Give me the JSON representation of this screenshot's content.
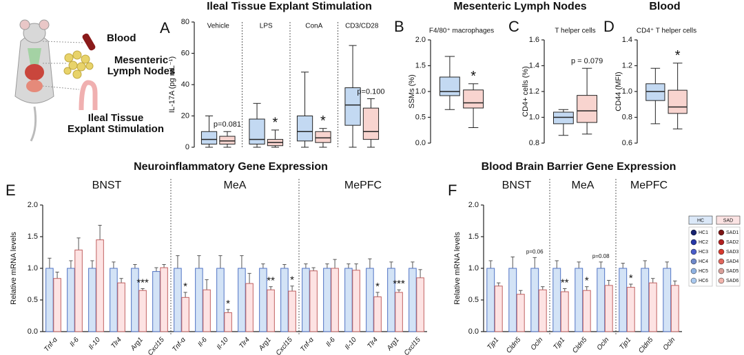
{
  "illustration": {
    "labels": [
      "Blood",
      "Mesenteric",
      "Lymph Nodes",
      "Ileal Tissue",
      "Explant Stimulation"
    ]
  },
  "legend": {
    "groups": [
      {
        "name": "HC",
        "items": [
          {
            "name": "HC1",
            "color": "#17226e"
          },
          {
            "name": "HC2",
            "color": "#2637a6"
          },
          {
            "name": "HC3",
            "color": "#4a5cc8"
          },
          {
            "name": "HC4",
            "color": "#6f88c9"
          },
          {
            "name": "HC5",
            "color": "#8fb2e2"
          },
          {
            "name": "HC6",
            "color": "#aac9ef"
          }
        ]
      },
      {
        "name": "SAD",
        "items": [
          {
            "name": "SAD1",
            "color": "#7d1414"
          },
          {
            "name": "SAD2",
            "color": "#b22020"
          },
          {
            "name": "SAD3",
            "color": "#d63a2e"
          },
          {
            "name": "SAD4",
            "color": "#e0665c"
          },
          {
            "name": "SAD5",
            "color": "#d9a09a"
          },
          {
            "name": "SAD6",
            "color": "#f2b5ad"
          }
        ]
      }
    ]
  },
  "chart_data": [
    {
      "type": "box",
      "panel": "A",
      "title": "Ileal Tissue Explant Stimulation",
      "y_label": "IL-17A (pg mL⁻¹)",
      "categories": [
        "Vehicle",
        "LPS",
        "ConA",
        "CD3/CD28"
      ],
      "ylim": [
        0,
        80
      ],
      "yticks": [
        0,
        20,
        40,
        60,
        80
      ],
      "series": [
        {
          "color": "#c3d9f2",
          "values": [
            {
              "min": 0,
              "q1": 2,
              "median": 5,
              "q3": 10,
              "max": 20
            },
            {
              "min": 0,
              "q1": 2,
              "median": 5,
              "q3": 18,
              "max": 28
            },
            {
              "min": 0,
              "q1": 4,
              "median": 10,
              "q3": 20,
              "max": 48
            },
            {
              "min": 0,
              "q1": 14,
              "median": 27,
              "q3": 38,
              "max": 65
            }
          ]
        },
        {
          "color": "#f8d4cf",
          "values": [
            {
              "min": 0,
              "q1": 2,
              "median": 4,
              "q3": 7,
              "max": 10
            },
            {
              "min": 0,
              "q1": 1,
              "median": 3,
              "q3": 5,
              "max": 11
            },
            {
              "min": 0,
              "q1": 3,
              "median": 6,
              "q3": 10,
              "max": 12
            },
            {
              "min": 0,
              "q1": 5,
              "median": 10,
              "q3": 25,
              "max": 31
            }
          ],
          "significance": [
            "p=0.081",
            "*",
            "*",
            "p=0.100"
          ]
        }
      ]
    },
    {
      "type": "box",
      "panel": "B",
      "title": "Mesenteric Lymph Nodes",
      "subtitle": "F4/80⁺ macrophages",
      "y_label": "SSMs (%)",
      "ylim": [
        0,
        2
      ],
      "yticks": [
        {
          "value": 0,
          "label": "0.0"
        },
        0.5,
        {
          "value": 1,
          "label": "1.0"
        },
        1.5,
        {
          "value": 2,
          "label": "2.0"
        }
      ],
      "series": [
        {
          "color": "#c3d9f2",
          "values": [
            {
              "min": 0.65,
              "q1": 0.92,
              "median": 1.0,
              "q3": 1.28,
              "max": 1.68
            }
          ]
        },
        {
          "color": "#f8d4cf",
          "values": [
            {
              "min": 0.3,
              "q1": 0.68,
              "median": 0.78,
              "q3": 1.03,
              "max": 1.15
            }
          ],
          "significance": [
            "*"
          ]
        }
      ]
    },
    {
      "type": "box",
      "panel": "C",
      "subtitle": "T helper cells",
      "y_label": "CD4+ cells (%)",
      "ylim": [
        0.8,
        1.6
      ],
      "yticks": [
        0.8,
        {
          "value": 1,
          "label": "1.0"
        },
        1.2,
        1.4,
        1.6
      ],
      "series": [
        {
          "color": "#c3d9f2",
          "values": [
            {
              "min": 0.86,
              "q1": 0.95,
              "median": 1.0,
              "q3": 1.04,
              "max": 1.06
            }
          ]
        },
        {
          "color": "#f8d4cf",
          "values": [
            {
              "min": 0.87,
              "q1": 0.96,
              "median": 1.05,
              "q3": 1.17,
              "max": 1.38
            }
          ],
          "significance": [
            "p = 0.079"
          ]
        }
      ]
    },
    {
      "type": "box",
      "panel": "D",
      "title": "Blood",
      "subtitle": "CD4⁺ T helper cells",
      "y_label": "CD44  (MFI)",
      "ylim": [
        0.6,
        1.4
      ],
      "yticks": [
        0.6,
        0.8,
        {
          "value": 1,
          "label": "1.0"
        },
        1.2,
        1.4
      ],
      "series": [
        {
          "color": "#c3d9f2",
          "values": [
            {
              "min": 0.75,
              "q1": 0.93,
              "median": 1.0,
              "q3": 1.06,
              "max": 1.18
            }
          ]
        },
        {
          "color": "#f8d4cf",
          "values": [
            {
              "min": 0.71,
              "q1": 0.83,
              "median": 0.88,
              "q3": 1.01,
              "max": 1.22
            }
          ],
          "significance": [
            "*"
          ]
        }
      ]
    },
    {
      "type": "bar",
      "panel": "E",
      "title": "Neuroinflammatory Gene Expression",
      "y_label": "Relative mRNA levels",
      "regions": [
        "BNST",
        "MeA",
        "MePFC"
      ],
      "categories": [
        "Tnf-α",
        "Il-6",
        "Il-10",
        "Tlr4",
        "Arg1",
        "Cxcl15",
        "Tnf-α",
        "Il-6",
        "Il-10",
        "Tlr4",
        "Arg1",
        "Cxcl15",
        "Tnf-α",
        "Il-6",
        "Il-10",
        "Tlr4",
        "Arg1",
        "Cxcl15"
      ],
      "ylim": [
        0,
        2
      ],
      "yticks": [
        {
          "value": 0,
          "label": "0.0"
        },
        0.5,
        {
          "value": 1,
          "label": "1.0"
        },
        1.5,
        {
          "value": 2,
          "label": "2.0"
        }
      ],
      "series": [
        {
          "color": "#d3e3f6",
          "values": [
            1,
            1,
            1,
            1,
            1,
            0.95,
            1,
            1,
            1,
            1,
            1,
            1,
            1,
            1,
            1,
            1,
            1,
            1
          ],
          "errors": [
            0.16,
            0.12,
            0.12,
            0.1,
            0.06,
            0.06,
            0.2,
            0.2,
            0.2,
            0.2,
            0.07,
            0.06,
            0.07,
            0.07,
            0.07,
            0.15,
            0.1,
            0.1
          ]
        },
        {
          "color": "#fde3e3",
          "values": [
            0.84,
            1.29,
            1.45,
            0.77,
            0.65,
            1.01,
            0.54,
            0.66,
            0.3,
            0.76,
            0.66,
            0.64,
            0.96,
            1.0,
            0.97,
            0.55,
            0.62,
            0.85
          ],
          "errors": [
            0.1,
            0.19,
            0.23,
            0.07,
            0.03,
            0.05,
            0.08,
            0.16,
            0.05,
            0.16,
            0.05,
            0.08,
            0.05,
            0.14,
            0.1,
            0.07,
            0.04,
            0.13
          ],
          "significance": [
            null,
            null,
            null,
            null,
            "***",
            null,
            "*",
            null,
            "*",
            null,
            "**",
            "*",
            null,
            null,
            null,
            "*",
            "***",
            null
          ]
        }
      ]
    },
    {
      "type": "bar",
      "panel": "F",
      "title": "Blood Brain Barrier Gene Expression",
      "y_label": "Relative mRNA levels",
      "regions": [
        "BNST",
        "MeA",
        "MePFC"
      ],
      "categories": [
        "Tjp1",
        "Cldn5",
        "Ocln",
        "Tjp1",
        "Cldn5",
        "Ocln",
        "Tjp1",
        "Cldn5",
        "Ocln"
      ],
      "ylim": [
        0,
        2
      ],
      "yticks": [
        {
          "value": 0,
          "label": "0.0"
        },
        0.5,
        {
          "value": 1,
          "label": "1.0"
        },
        1.5,
        {
          "value": 2,
          "label": "2.0"
        }
      ],
      "series": [
        {
          "color": "#d3e3f6",
          "values": [
            1,
            1,
            1,
            1,
            1,
            1,
            1,
            1,
            1
          ],
          "errors": [
            0.12,
            0.18,
            0.17,
            0.12,
            0.1,
            0.1,
            0.08,
            0.12,
            0.1
          ],
          "significance": [
            null,
            null,
            "p=0.06",
            null,
            null,
            "p=0.08",
            null,
            null,
            null
          ]
        },
        {
          "color": "#fde3e3",
          "values": [
            0.72,
            0.59,
            0.66,
            0.63,
            0.65,
            0.73,
            0.7,
            0.77,
            0.73
          ],
          "errors": [
            0.05,
            0.06,
            0.05,
            0.05,
            0.06,
            0.08,
            0.05,
            0.07,
            0.07
          ],
          "significance": [
            null,
            null,
            null,
            "**",
            "*",
            null,
            "*",
            null,
            null
          ]
        }
      ]
    }
  ]
}
